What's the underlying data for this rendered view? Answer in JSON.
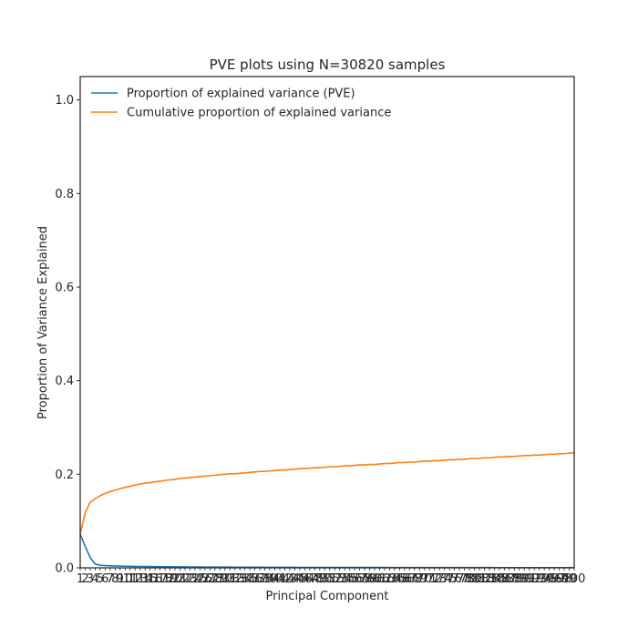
{
  "chart_data": {
    "type": "line",
    "title": "PVE plots using N=30820 samples",
    "xlabel": "Principal Component",
    "ylabel": "Proportion of Variance Explained",
    "xlim": [
      1,
      100
    ],
    "ylim": [
      0,
      1.05
    ],
    "y_ticks": [
      0.0,
      0.2,
      0.4,
      0.6,
      0.8,
      1.0
    ],
    "y_tick_labels": [
      "0.0",
      "0.2",
      "0.4",
      "0.6",
      "0.8",
      "1.0"
    ],
    "x_tick_labels": [
      "1",
      "2",
      "3",
      "4",
      "5",
      "6",
      "7",
      "8",
      "9",
      "10",
      "11",
      "12",
      "13",
      "14",
      "15",
      "16",
      "17",
      "18",
      "19",
      "20",
      "21",
      "22",
      "23",
      "24",
      "25",
      "26",
      "27",
      "28",
      "29",
      "30",
      "31",
      "32",
      "33",
      "34",
      "35",
      "36",
      "37",
      "38",
      "39",
      "40",
      "41",
      "42",
      "43",
      "44",
      "45",
      "46",
      "47",
      "48",
      "49",
      "50",
      "51",
      "52",
      "53",
      "54",
      "55",
      "56",
      "57",
      "58",
      "59",
      "60",
      "61",
      "62",
      "63",
      "64",
      "65",
      "66",
      "67",
      "68",
      "69",
      "70",
      "71",
      "72",
      "73",
      "74",
      "75",
      "76",
      "77",
      "78",
      "79",
      "80",
      "81",
      "82",
      "83",
      "84",
      "85",
      "86",
      "87",
      "88",
      "89",
      "90",
      "91",
      "92",
      "93",
      "94",
      "95",
      "96",
      "97",
      "98",
      "99",
      "100"
    ],
    "grid": false,
    "legend_position": "top-left",
    "series": [
      {
        "name": "Proportion of explained variance (PVE)",
        "color": "#1f77b4",
        "values": [
          0.072,
          0.046,
          0.022,
          0.008,
          0.0055,
          0.0048,
          0.0043,
          0.004,
          0.0037,
          0.0034,
          0.0032,
          0.003,
          0.0029,
          0.0028,
          0.0027,
          0.0026,
          0.0025,
          0.0024,
          0.0023,
          0.0022,
          0.0021,
          0.002,
          0.0019,
          0.0019,
          0.0018,
          0.0017,
          0.0017,
          0.0016,
          0.0016,
          0.0015,
          0.0015,
          0.0014,
          0.0014,
          0.0014,
          0.0013,
          0.0013,
          0.0013,
          0.0012,
          0.0012,
          0.0012,
          0.0011,
          0.0011,
          0.0011,
          0.0011,
          0.001,
          0.001,
          0.001,
          0.001,
          0.001,
          0.0009,
          0.0009,
          0.0009,
          0.0009,
          0.0009,
          0.0009,
          0.0008,
          0.0008,
          0.0008,
          0.0008,
          0.0008,
          0.0008,
          0.0008,
          0.0007,
          0.0007,
          0.0007,
          0.0007,
          0.0007,
          0.0007,
          0.0007,
          0.0007,
          0.0007,
          0.0006,
          0.0006,
          0.0006,
          0.0006,
          0.0006,
          0.0006,
          0.0006,
          0.0006,
          0.0006,
          0.0006,
          0.0006,
          0.0006,
          0.0005,
          0.0005,
          0.0005,
          0.0005,
          0.0005,
          0.0005,
          0.0005,
          0.0005,
          0.0005,
          0.0005,
          0.0005,
          0.0005,
          0.0005,
          0.0005,
          0.0005,
          0.0005,
          0.0005
        ]
      },
      {
        "name": "Cumulative proportion of explained variance",
        "color": "#ff7f0e",
        "values": [
          0.072,
          0.118,
          0.14,
          0.148,
          0.154,
          0.159,
          0.163,
          0.166,
          0.169,
          0.172,
          0.174,
          0.177,
          0.179,
          0.181,
          0.182,
          0.184,
          0.185,
          0.187,
          0.188,
          0.189,
          0.191,
          0.192,
          0.193,
          0.194,
          0.195,
          0.196,
          0.197,
          0.198,
          0.199,
          0.2,
          0.201,
          0.201,
          0.202,
          0.203,
          0.204,
          0.205,
          0.206,
          0.206,
          0.207,
          0.208,
          0.209,
          0.209,
          0.21,
          0.211,
          0.212,
          0.212,
          0.213,
          0.214,
          0.214,
          0.215,
          0.216,
          0.216,
          0.217,
          0.218,
          0.218,
          0.219,
          0.22,
          0.22,
          0.221,
          0.221,
          0.222,
          0.223,
          0.223,
          0.224,
          0.225,
          0.225,
          0.226,
          0.226,
          0.227,
          0.228,
          0.228,
          0.229,
          0.229,
          0.23,
          0.231,
          0.231,
          0.232,
          0.232,
          0.233,
          0.234,
          0.234,
          0.235,
          0.235,
          0.236,
          0.237,
          0.237,
          0.238,
          0.238,
          0.239,
          0.24,
          0.24,
          0.241,
          0.241,
          0.242,
          0.243,
          0.243,
          0.244,
          0.244,
          0.245,
          0.246
        ]
      }
    ]
  }
}
